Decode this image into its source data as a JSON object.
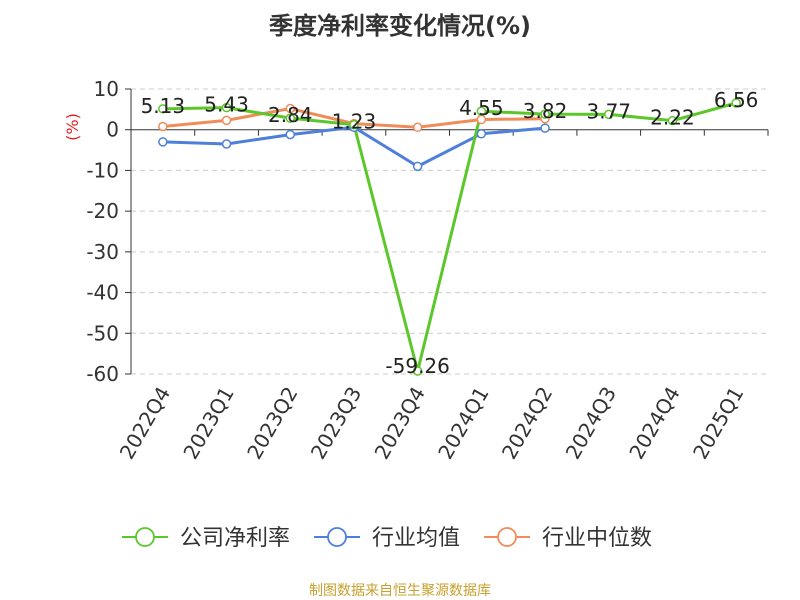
{
  "title": "季度净利率变化情况(%)",
  "source": "制图数据来自恒生聚源数据库",
  "chart_data": {
    "type": "line",
    "title": "季度净利率变化情况(%)",
    "ylabel": "(%)",
    "xlabel": "",
    "ylim": [
      -60,
      10
    ],
    "yticks": [
      10,
      0,
      -10,
      -20,
      -30,
      -40,
      -50,
      -60
    ],
    "grid": "horizontal-dashed",
    "legend_position": "bottom",
    "categories": [
      "2022Q4",
      "2023Q1",
      "2023Q2",
      "2023Q3",
      "2023Q4",
      "2024Q1",
      "2024Q2",
      "2024Q3",
      "2024Q4",
      "2025Q1"
    ],
    "series": [
      {
        "name": "公司净利率",
        "color": "#5cc72b",
        "values": [
          5.13,
          5.43,
          2.84,
          1.23,
          -59.26,
          4.55,
          3.82,
          3.77,
          2.22,
          6.56
        ],
        "labels": [
          "5.13",
          "5.43",
          "2.84",
          "1.23",
          "-59.26",
          "4.55",
          "3.82",
          "3.77",
          "2.22",
          "6.56"
        ]
      },
      {
        "name": "行业均值",
        "color": "#4e7fdb",
        "values": [
          -3.0,
          -3.5,
          -1.2,
          0.6,
          -9.0,
          -1.0,
          0.4,
          null,
          null,
          null
        ]
      },
      {
        "name": "行业中位数",
        "color": "#f08c5a",
        "values": [
          0.8,
          2.3,
          5.2,
          1.5,
          0.6,
          2.5,
          2.7,
          null,
          null,
          null
        ]
      }
    ]
  }
}
